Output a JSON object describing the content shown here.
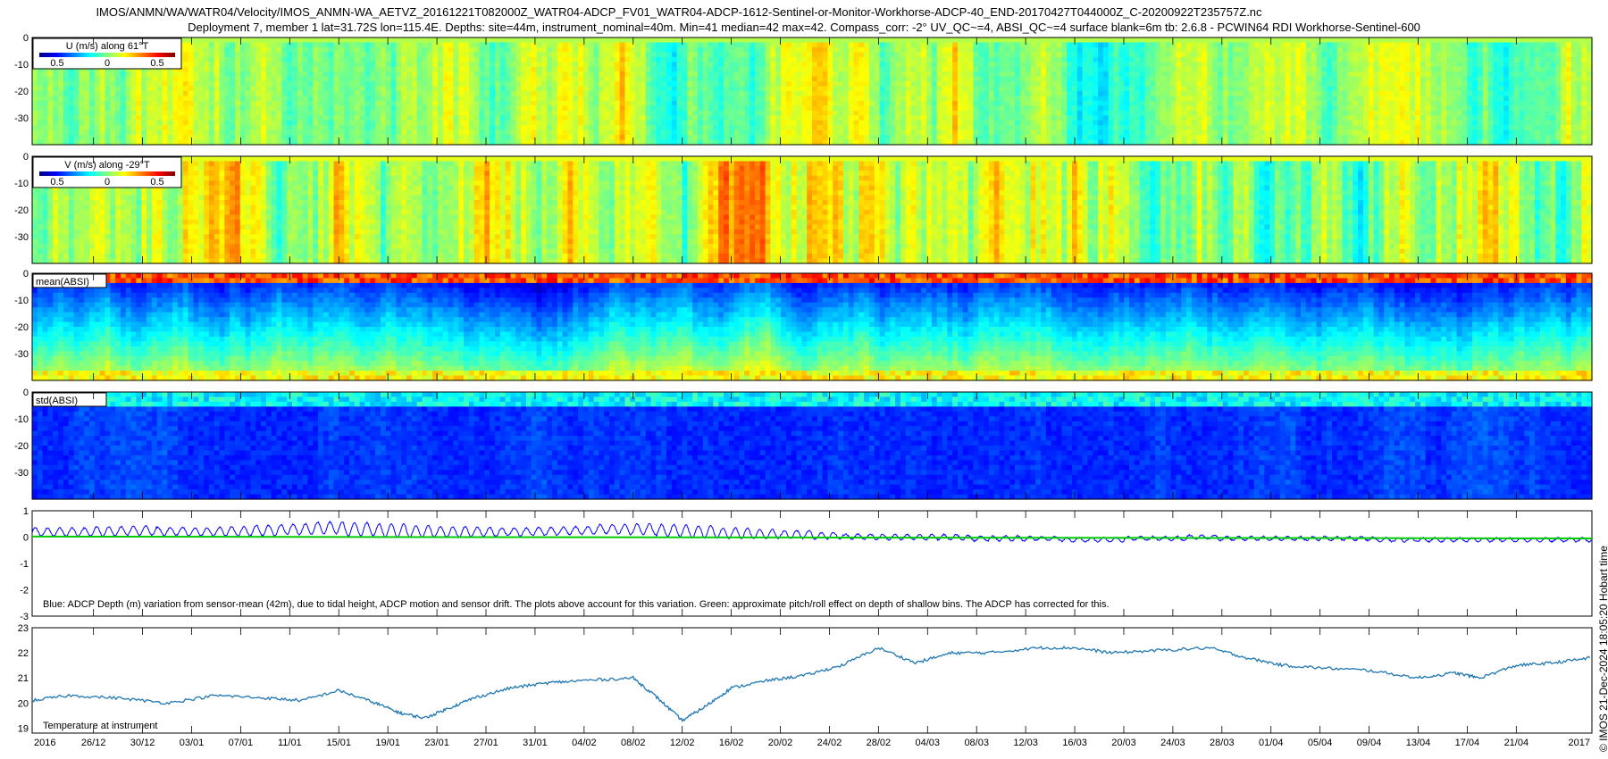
{
  "header": {
    "title_line1": "IMOS/ANMN/WA/WATR04/Velocity/IMOS_ANMN-WA_AETVZ_20161221T082000Z_WATR04-ADCP_FV01_WATR04-ADCP-1612-Sentinel-or-Monitor-Workhorse-ADCP-40_END-20170427T044000Z_C-20200922T235757Z.nc",
    "title_line2": "Deployment 7, member 1 lat=31.72S lon=115.4E. Depths: site=44m, instrument_nominal=40m. Min=41 median=42 max=42. Compass_corr: -2° UV_QC~=4, ABSI_QC~=4 surface blank=6m tb: 2.6.8 - PCWIN64 RDI Workhorse-Sentinel-600"
  },
  "side_label": "© IMOS 21-Dec-2024 18:05:20 Hobart time",
  "palette": {
    "jet": [
      "#00007f",
      "#0000ff",
      "#007fff",
      "#00ffff",
      "#7fff7f",
      "#ffff00",
      "#ff7f00",
      "#ff0000",
      "#7f0000"
    ],
    "series_blue": "#0000ff",
    "series_green": "#00cc00",
    "series_temp": "#1f77b4"
  },
  "chart_data": [
    {
      "type": "heatmap",
      "name": "U",
      "legend_label": "U (m/s) along 61°T",
      "colorbar_ticks": [
        "0.5",
        "0",
        "0.5"
      ],
      "yticks": [
        "0",
        "-10",
        "-20",
        "-30"
      ],
      "ylim": [
        -40,
        0
      ],
      "grid": false
    },
    {
      "type": "heatmap",
      "name": "V",
      "legend_label": "V (m/s) along -29°T",
      "colorbar_ticks": [
        "0.5",
        "0",
        "0.5"
      ],
      "yticks": [
        "0",
        "-10",
        "-20",
        "-30"
      ],
      "ylim": [
        -40,
        0
      ],
      "grid": false
    },
    {
      "type": "heatmap",
      "name": "mean(ABSI)",
      "legend_label": "mean(ABSI)",
      "yticks": [
        "0",
        "-10",
        "-20",
        "-30"
      ],
      "ylim": [
        -40,
        0
      ],
      "grid": false
    },
    {
      "type": "heatmap",
      "name": "std(ABSI)",
      "legend_label": "std(ABSI)",
      "yticks": [
        "0",
        "-10",
        "-20",
        "-30"
      ],
      "ylim": [
        -40,
        0
      ],
      "grid": false
    },
    {
      "type": "line",
      "name": "depth",
      "annotation": "Blue: ADCP Depth (m) variation from sensor-mean (42m), due to tidal height, ADCP motion and sensor drift. The plots above account for this variation. Green: approximate pitch/roll effect on depth of shallow bins. The ADCP has corrected for this.",
      "yticks": [
        "1",
        "0",
        "-1",
        "-2",
        "-3"
      ],
      "ylim": [
        -3,
        1
      ],
      "series": [
        {
          "color": "blue",
          "amplitude_by_day": [
            0.3,
            0.3,
            0.35,
            0.35,
            0.3,
            0.3,
            0.35,
            0.4,
            0.4,
            0.45,
            0.5,
            0.5,
            0.45,
            0.4,
            0.35,
            0.3,
            0.3,
            0.3,
            0.35,
            0.4,
            0.45,
            0.45,
            0.4,
            0.35,
            0.3,
            0.25,
            0.2,
            0.2,
            0.2,
            0.2,
            0.2,
            0.2,
            0.15,
            0.15,
            0.15,
            0.15,
            0.15,
            0.15,
            0.15,
            0.15,
            0.15,
            0.15,
            0.15,
            0.15,
            0.15,
            0.15,
            0.15,
            0.15,
            0.15,
            0.15
          ],
          "mean_by_day": [
            0.2,
            0.2,
            0.22,
            0.25,
            0.22,
            0.2,
            0.22,
            0.25,
            0.3,
            0.35,
            0.3,
            0.25,
            0.22,
            0.2,
            0.2,
            0.2,
            0.22,
            0.25,
            0.3,
            0.3,
            0.25,
            0.2,
            0.15,
            0.12,
            0.1,
            0.05,
            0.02,
            0.0,
            0.0,
            0.0,
            -0.05,
            -0.05,
            -0.05,
            -0.1,
            -0.1,
            -0.05,
            -0.05,
            0.0,
            -0.05,
            -0.05,
            -0.05,
            -0.05,
            -0.05,
            -0.1,
            -0.1,
            -0.1,
            -0.1,
            -0.1,
            -0.1,
            -0.1
          ]
        },
        {
          "color": "green",
          "value": 0.0
        }
      ]
    },
    {
      "type": "line",
      "name": "temperature",
      "annotation": "Temperature at instrument",
      "yticks": [
        "23",
        "22",
        "21",
        "20",
        "19"
      ],
      "ylim": [
        18.8,
        23
      ],
      "x": [
        "2016-12-21",
        "2016-12-24",
        "2016-12-28",
        "2017-01-01",
        "2017-01-05",
        "2017-01-09",
        "2017-01-12",
        "2017-01-15",
        "2017-01-18",
        "2017-01-20",
        "2017-01-22",
        "2017-01-24",
        "2017-01-26",
        "2017-01-29",
        "2017-02-01",
        "2017-02-04",
        "2017-02-08",
        "2017-02-10",
        "2017-02-12",
        "2017-02-14",
        "2017-02-16",
        "2017-02-19",
        "2017-02-22",
        "2017-02-25",
        "2017-02-28",
        "2017-03-03",
        "2017-03-06",
        "2017-03-09",
        "2017-03-13",
        "2017-03-16",
        "2017-03-19",
        "2017-03-23",
        "2017-03-27",
        "2017-03-30",
        "2017-04-02",
        "2017-04-05",
        "2017-04-09",
        "2017-04-13",
        "2017-04-16",
        "2017-04-18",
        "2017-04-21",
        "2017-04-24",
        "2017-04-27"
      ],
      "values": [
        20.1,
        20.3,
        20.2,
        20.0,
        20.3,
        20.2,
        20.1,
        20.5,
        20.0,
        19.6,
        19.4,
        19.8,
        20.2,
        20.6,
        20.8,
        20.9,
        21.0,
        20.2,
        19.3,
        19.9,
        20.6,
        20.9,
        21.1,
        21.5,
        22.2,
        21.6,
        22.0,
        22.0,
        22.2,
        22.2,
        22.0,
        22.1,
        22.2,
        21.8,
        21.5,
        21.4,
        21.3,
        21.0,
        21.2,
        21.0,
        21.5,
        21.6,
        21.8
      ]
    }
  ],
  "x_axis": {
    "start_label": "2016",
    "end_label": "2017",
    "tick_labels": [
      "26/12",
      "30/12",
      "03/01",
      "07/01",
      "11/01",
      "15/01",
      "19/01",
      "23/01",
      "27/01",
      "31/01",
      "04/02",
      "08/02",
      "12/02",
      "16/02",
      "20/02",
      "24/02",
      "28/02",
      "04/03",
      "08/03",
      "12/03",
      "16/03",
      "20/03",
      "24/03",
      "28/03",
      "01/04",
      "05/04",
      "09/04",
      "13/04",
      "17/04",
      "21/04"
    ]
  }
}
